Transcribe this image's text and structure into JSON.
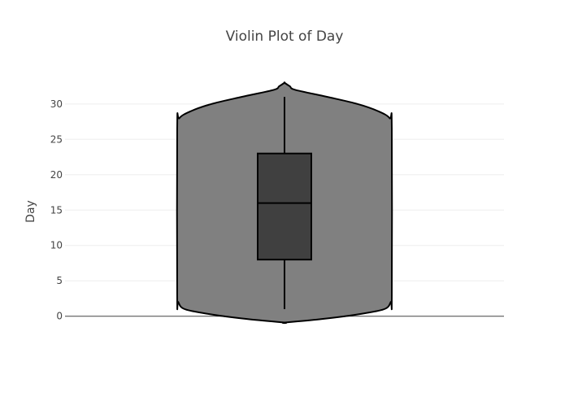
{
  "chart_data": {
    "type": "violin",
    "title": "Violin Plot of Day",
    "xlabel": "",
    "ylabel": "Day",
    "ylim": [
      -1.3,
      33.2
    ],
    "yticks": [
      0,
      5,
      10,
      15,
      20,
      25,
      30
    ],
    "grid": true,
    "legend": "none",
    "series": [
      {
        "min": 1,
        "q1": 8,
        "median": 16,
        "q3": 23,
        "max": 31,
        "density": [
          {
            "y": -0.9,
            "w": 0.0
          },
          {
            "y": -0.4,
            "w": 0.35
          },
          {
            "y": 0.3,
            "w": 0.7
          },
          {
            "y": 1.0,
            "w": 0.93
          },
          {
            "y": 2.0,
            "w": 0.99
          },
          {
            "y": 3.0,
            "w": 1.0
          },
          {
            "y": 26.5,
            "w": 1.0
          },
          {
            "y": 28.0,
            "w": 0.98
          },
          {
            "y": 29.0,
            "w": 0.87
          },
          {
            "y": 30.0,
            "w": 0.68
          },
          {
            "y": 31.0,
            "w": 0.4
          },
          {
            "y": 32.0,
            "w": 0.1
          },
          {
            "y": 32.5,
            "w": 0.05
          },
          {
            "y": 33.0,
            "w": 0.0
          }
        ]
      }
    ],
    "colors": {
      "violin_fill": "#808080",
      "violin_line": "#000000",
      "box_fill": "#404040",
      "box_line": "#000000"
    }
  }
}
